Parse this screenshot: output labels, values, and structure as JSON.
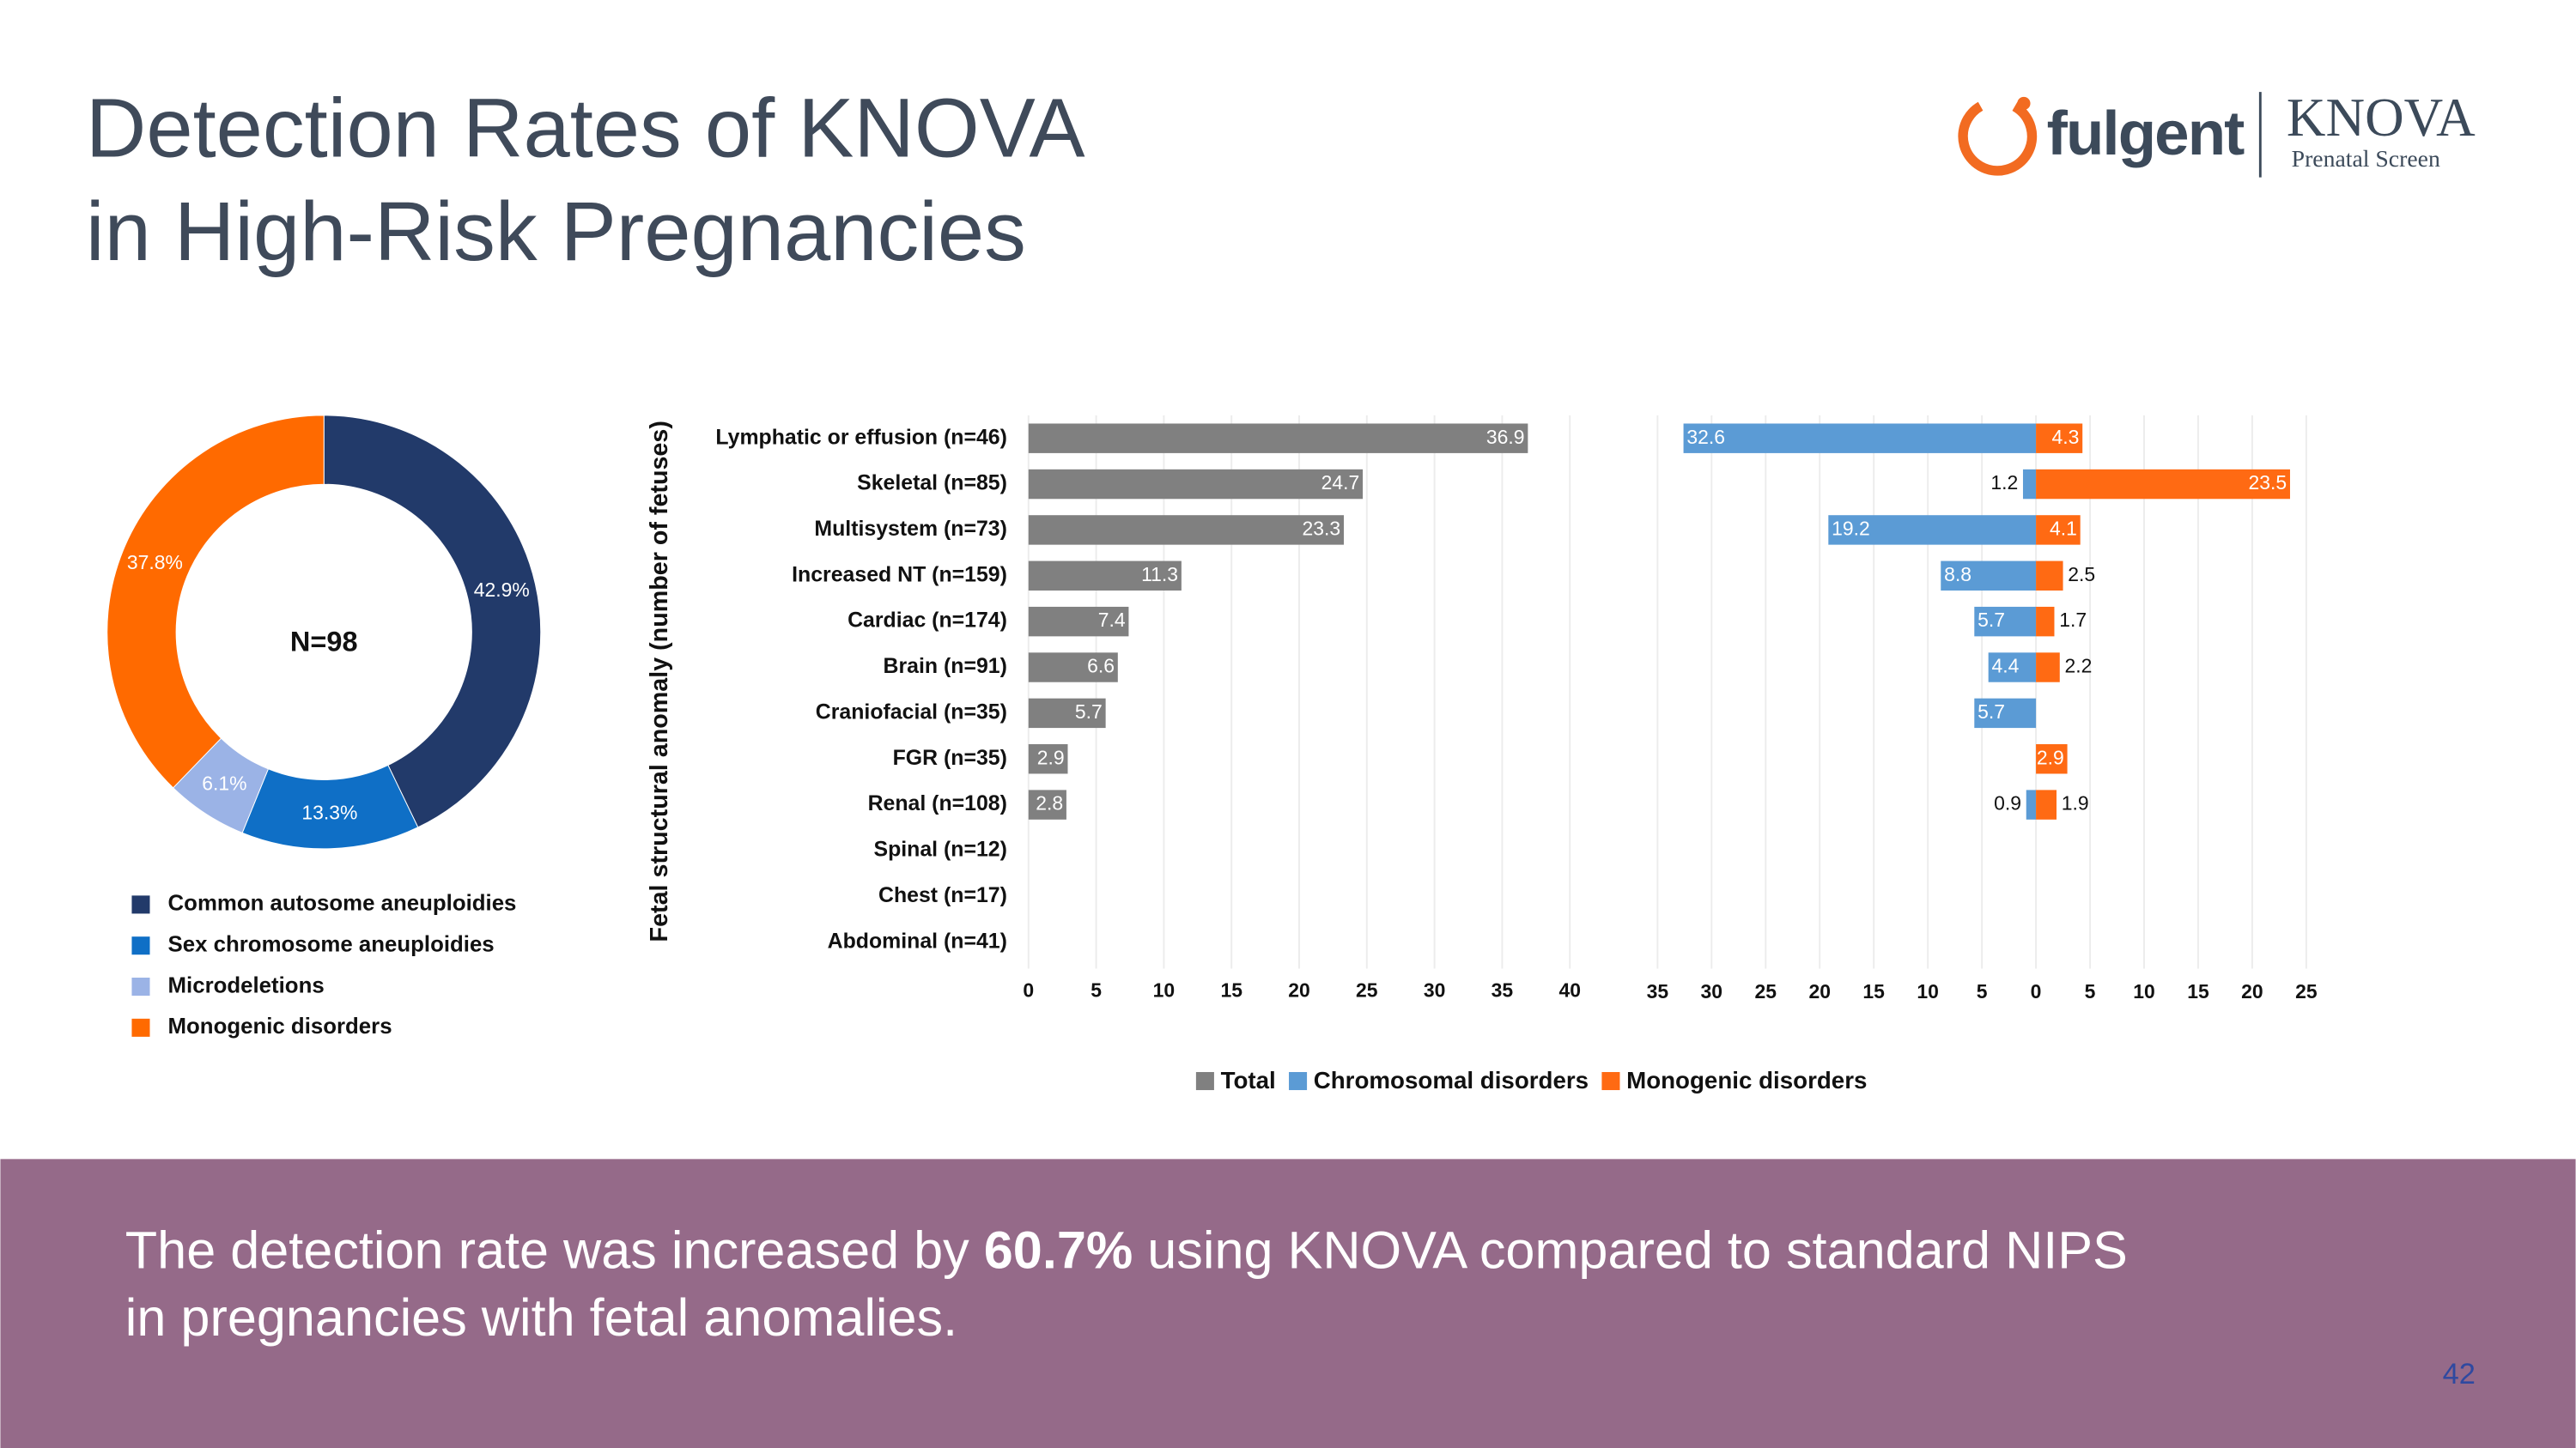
{
  "title": [
    "Detection Rates of KNOVA",
    "in High-Risk Pregnancies"
  ],
  "logo": {
    "brand": "fulgent",
    "product": "KNOVA",
    "product_sub": "Prenatal Screen"
  },
  "footer": {
    "line1_before": "The detection rate was increased by ",
    "highlight": "60.7%",
    "line1_after": " using KNOVA compared to standard NIPS",
    "line2": "in pregnancies with fetal anomalies."
  },
  "page_number": 42,
  "chart_data": [
    {
      "type": "donut",
      "center_label": "N=98",
      "categories": [
        "Common autosome aneuploidies",
        "Sex chromosome aneuploidies",
        "Microdeletions",
        "Monogenic disorders"
      ],
      "values": [
        42.9,
        13.3,
        6.1,
        37.8
      ],
      "value_labels": [
        "42.9%",
        "13.3%",
        "6.1%",
        "37.8%"
      ],
      "colors": [
        "#223a6a",
        "#0f6fc6",
        "#9bb3e6",
        "#ff6a00"
      ]
    },
    {
      "type": "hbar",
      "y_label": "Fetal structural anomaly (number of fetuses)",
      "categories": [
        "Lymphatic or effusion (n=46)",
        "Skeletal (n=85)",
        "Multisystem (n=73)",
        "Increased NT (n=159)",
        "Cardiac (n=174)",
        "Brain (n=91)",
        "Craniofacial (n=35)",
        "FGR (n=35)",
        "Renal (n=108)",
        "Spinal (n=12)",
        "Chest (n=17)",
        "Abdominal (n=41)"
      ],
      "series": [
        {
          "name": "Total",
          "color": "#808080",
          "values": [
            36.9,
            24.7,
            23.3,
            11.3,
            7.4,
            6.6,
            5.7,
            2.9,
            2.8,
            null,
            null,
            null
          ]
        }
      ],
      "xlim": [
        0,
        40
      ],
      "xticks": [
        0,
        5,
        10,
        15,
        20,
        25,
        30,
        35,
        40
      ],
      "grid": true
    },
    {
      "type": "diverging_hbar",
      "series": [
        {
          "name": "Chromosomal disorders",
          "color": "#5b9bd5",
          "values": [
            -32.6,
            -1.2,
            -19.2,
            -8.8,
            -5.7,
            -4.4,
            -5.7,
            null,
            -0.9,
            null,
            null,
            null
          ],
          "value_labels": [
            "32.6",
            "1.2",
            "19.2",
            "8.8",
            "5.7",
            "4.4",
            "5.7",
            null,
            "0.9",
            null,
            null,
            null
          ]
        },
        {
          "name": "Monogenic disorders",
          "color": "#ff6a13",
          "values": [
            4.3,
            23.5,
            4.1,
            2.5,
            1.7,
            2.2,
            null,
            2.9,
            1.9,
            null,
            null,
            null
          ]
        }
      ],
      "xlim": [
        -35,
        25
      ],
      "xticks": [
        {
          "value": -35,
          "label": "35"
        },
        {
          "value": -30,
          "label": "30"
        },
        {
          "value": -25,
          "label": "25"
        },
        {
          "value": -20,
          "label": "20"
        },
        {
          "value": -15,
          "label": "15"
        },
        {
          "value": -10,
          "label": "10"
        },
        {
          "value": -5,
          "label": "5"
        },
        0,
        5,
        10,
        15,
        20,
        25
      ],
      "grid": true
    }
  ]
}
